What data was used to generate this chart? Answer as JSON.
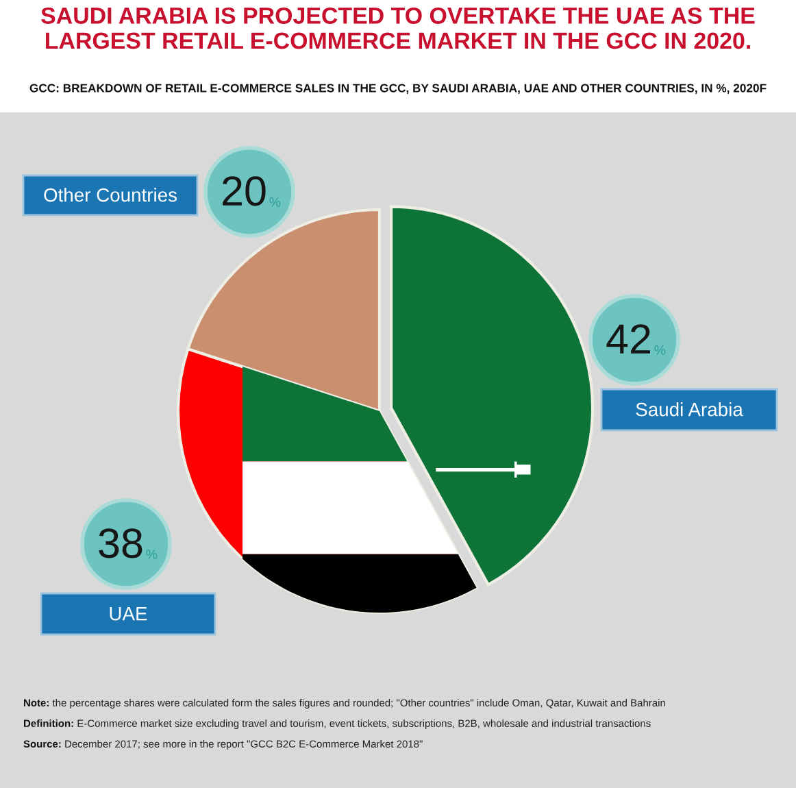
{
  "chart_data": {
    "type": "pie",
    "title": "SAUDI ARABIA IS PROJECTED TO OVERTAKE THE UAE AS THE LARGEST RETAIL E-COMMERCE MARKET IN THE GCC IN 2020.",
    "subtitle": "GCC: BREAKDOWN OF RETAIL E-COMMERCE SALES IN THE GCC, BY SAUDI ARABIA, UAE AND OTHER COUNTRIES, IN %, 2020F",
    "categories": [
      "Saudi Arabia",
      "UAE",
      "Other Countries"
    ],
    "values": [
      42,
      38,
      20
    ],
    "colors": [
      "#0e7337",
      "#ff0000",
      "#c98f6f"
    ],
    "value_labels": [
      "42%",
      "38%",
      "20%"
    ],
    "annotations": [
      "Note: the percentage shares were calculated form the sales figures and rounded; \"Other countries\" include Oman, Qatar, Kuwait and Bahrain",
      "Definition: E-Commerce market size excluding travel and tourism, event tickets, subscriptions, B2B, wholesale and industrial transactions",
      "Source: December 2017; see more in the report \"GCC B2C E-Commerce Market 2018\""
    ]
  }
}
